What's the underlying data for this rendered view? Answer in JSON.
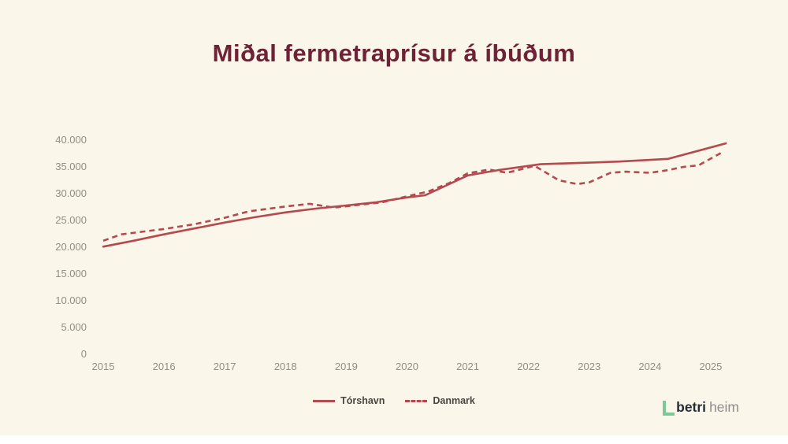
{
  "chart_data": {
    "type": "line",
    "title": "Miðal fermetraprísur á íbúðum",
    "xlabel": "",
    "ylabel": "",
    "grid": false,
    "legend_position": "bottom-center",
    "xlim": [
      2015,
      2025.3
    ],
    "ylim": [
      0,
      40000
    ],
    "x_tick_labels": [
      "2015",
      "2016",
      "2017",
      "2018",
      "2019",
      "2020",
      "2021",
      "2022",
      "2023",
      "2024",
      "2025"
    ],
    "y_tick_labels": [
      "40.000",
      "35.000",
      "30.000",
      "25.000",
      "20.000",
      "15.000",
      "10.000",
      "5.000",
      "0"
    ],
    "series": [
      {
        "name": "Tórshavn",
        "style": "solid",
        "color": "#b4494e",
        "points": [
          [
            2015,
            20100
          ],
          [
            2015.5,
            21200
          ],
          [
            2016,
            22400
          ],
          [
            2016.5,
            23500
          ],
          [
            2017,
            24600
          ],
          [
            2017.5,
            25600
          ],
          [
            2018,
            26500
          ],
          [
            2018.5,
            27200
          ],
          [
            2019,
            27800
          ],
          [
            2019.5,
            28400
          ],
          [
            2020,
            29300
          ],
          [
            2020.3,
            29700
          ],
          [
            2021,
            33400
          ],
          [
            2021.5,
            34400
          ],
          [
            2022.2,
            35500
          ],
          [
            2023,
            35800
          ],
          [
            2023.5,
            36000
          ],
          [
            2024.3,
            36500
          ],
          [
            2025.25,
            39400
          ]
        ]
      },
      {
        "name": "Danmark",
        "style": "dashed",
        "color": "#b4494e",
        "points": [
          [
            2015,
            21200
          ],
          [
            2015.3,
            22400
          ],
          [
            2016,
            23400
          ],
          [
            2016.5,
            24300
          ],
          [
            2017,
            25500
          ],
          [
            2017.4,
            26700
          ],
          [
            2018,
            27600
          ],
          [
            2018.4,
            28100
          ],
          [
            2018.8,
            27400
          ],
          [
            2019.2,
            27900
          ],
          [
            2019.6,
            28400
          ],
          [
            2020,
            29500
          ],
          [
            2020.35,
            30400
          ],
          [
            2020.7,
            32000
          ],
          [
            2021,
            33800
          ],
          [
            2021.35,
            34500
          ],
          [
            2021.65,
            33900
          ],
          [
            2022.1,
            35200
          ],
          [
            2022.5,
            32500
          ],
          [
            2022.8,
            31800
          ],
          [
            2023,
            32100
          ],
          [
            2023.35,
            33900
          ],
          [
            2023.6,
            34100
          ],
          [
            2024,
            33900
          ],
          [
            2024.3,
            34400
          ],
          [
            2024.55,
            35000
          ],
          [
            2024.8,
            35300
          ],
          [
            2025.2,
            37800
          ]
        ]
      }
    ]
  },
  "colors": {
    "background": "#faf6e9",
    "title": "#6e2235",
    "line": "#b4494e",
    "axis_text": "#918e85",
    "legend_text": "#4a4441",
    "logo_green": "#7cc998"
  },
  "logo": {
    "bold_text": "betri",
    "light_text": "heim"
  }
}
